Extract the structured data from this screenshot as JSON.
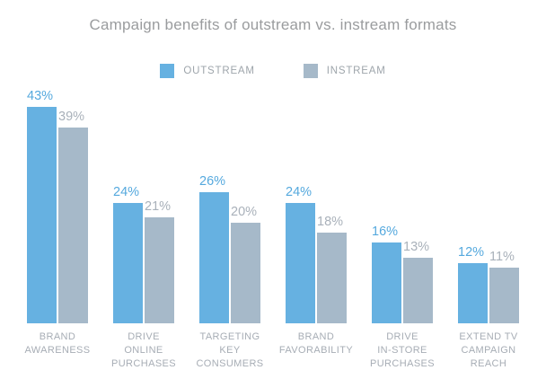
{
  "title": "Campaign benefits of outstream vs. instream formats",
  "colors": {
    "background": "#ffffff",
    "title_text": "#9a9c9e",
    "legend_text": "#9ea5ab",
    "category_text": "#a7adb5",
    "outstream_bar": "#66b1e1",
    "instream_bar": "#a6b9c9",
    "outstream_value_label": "#55a9de",
    "instream_value_label": "#a9b1ba"
  },
  "chart_data": {
    "type": "bar",
    "title": "Campaign benefits of outstream vs. instream formats",
    "unit": "%",
    "categories": [
      "BRAND AWARENESS",
      "DRIVE ONLINE PURCHASES",
      "TARGETING KEY CONSUMERS",
      "BRAND FAVORABILITY",
      "DRIVE IN-STORE PURCHASES",
      "EXTEND TV CAMPAIGN REACH"
    ],
    "categories_wrapped": [
      [
        "BRAND",
        "AWARENESS"
      ],
      [
        "DRIVE",
        "ONLINE",
        "PURCHASES"
      ],
      [
        "TARGETING",
        "KEY",
        "CONSUMERS"
      ],
      [
        "BRAND",
        "FAVORABILITY"
      ],
      [
        "DRIVE",
        "IN-STORE",
        "PURCHASES"
      ],
      [
        "EXTEND TV",
        "CAMPAIGN",
        "REACH"
      ]
    ],
    "series": [
      {
        "name": "OUTSTREAM",
        "color": "#66b1e1",
        "values": [
          43,
          24,
          26,
          24,
          16,
          12
        ]
      },
      {
        "name": "INSTREAM",
        "color": "#a6b9c9",
        "values": [
          39,
          21,
          20,
          18,
          13,
          11
        ]
      }
    ],
    "value_label_format": "{value}%",
    "ylim": [
      0,
      45
    ],
    "grid": false,
    "axes_visible": false,
    "legend_position": "top-center",
    "value_labels_shown": true
  }
}
